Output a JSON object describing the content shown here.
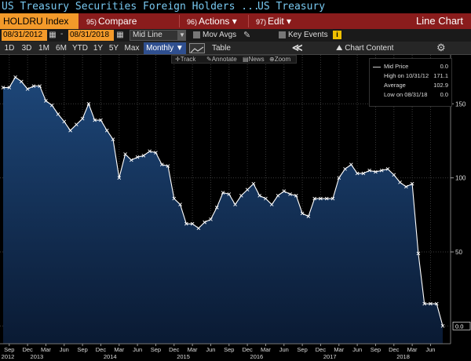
{
  "title_bar": {
    "title": "US Treasury Securities Foreign Holders ...",
    "subtitle": "US Treasury"
  },
  "toolbar1": {
    "ticker": "HOLDRU Index",
    "compare_num": "95)",
    "compare_label": "Compare",
    "actions_num": "96)",
    "actions_label": "Actions ▾",
    "edit_num": "97)",
    "edit_label": "Edit ▾",
    "chart_type": "Line Chart"
  },
  "toolbar2": {
    "start_date": "08/31/2012",
    "end_date": "08/31/2018",
    "dash": "-",
    "price_field": "Mid Line",
    "mov_avgs": "Mov Avgs",
    "key_events": "Key Events"
  },
  "toolbar3": {
    "ranges": [
      "1D",
      "3D",
      "1M",
      "6M",
      "YTD",
      "1Y",
      "5Y",
      "Max"
    ],
    "period": "Monthly ▼",
    "table_label": "Table",
    "chart_content": "Chart Content"
  },
  "subtools": {
    "track": "Track",
    "annotate": "Annotate",
    "news": "News",
    "zoom": "Zoom"
  },
  "legend": {
    "mid_price_label": "Mid Price",
    "mid_price_value": "0.0",
    "high_label": "High on 10/31/12",
    "high_value": "171.1",
    "average_label": "Average",
    "average_value": "102.9",
    "low_label": "Low on 08/31/18",
    "low_value": "0.0"
  },
  "colors": {
    "line": "#ffffff",
    "area_top": "#1d4678",
    "area_bottom": "#0a1a33",
    "accent_orange": "#f39a2a",
    "toolbar_red": "#8a1c1c"
  },
  "chart_data": {
    "type": "area",
    "series": [
      {
        "name": "Mid Price",
        "x": [
          "2012-08",
          "2012-09",
          "2012-10",
          "2012-11",
          "2012-12",
          "2013-01",
          "2013-02",
          "2013-03",
          "2013-04",
          "2013-05",
          "2013-06",
          "2013-07",
          "2013-08",
          "2013-09",
          "2013-10",
          "2013-11",
          "2013-12",
          "2014-01",
          "2014-02",
          "2014-03",
          "2014-04",
          "2014-05",
          "2014-06",
          "2014-07",
          "2014-08",
          "2014-09",
          "2014-10",
          "2014-11",
          "2014-12",
          "2015-01",
          "2015-02",
          "2015-03",
          "2015-04",
          "2015-05",
          "2015-06",
          "2015-07",
          "2015-08",
          "2015-09",
          "2015-10",
          "2015-11",
          "2015-12",
          "2016-01",
          "2016-02",
          "2016-03",
          "2016-04",
          "2016-05",
          "2016-06",
          "2016-07",
          "2016-08",
          "2016-09",
          "2016-10",
          "2016-11",
          "2016-12",
          "2017-01",
          "2017-02",
          "2017-03",
          "2017-04",
          "2017-05",
          "2017-06",
          "2017-07",
          "2017-08",
          "2017-09",
          "2017-10",
          "2017-11",
          "2017-12",
          "2018-01",
          "2018-02",
          "2018-03",
          "2018-04",
          "2018-05",
          "2018-06",
          "2018-07",
          "2018-08"
        ],
        "values": [
          161,
          161,
          168,
          165,
          160,
          162,
          162,
          152,
          149,
          143,
          138,
          132,
          136,
          140,
          150,
          139,
          139,
          132,
          126,
          100,
          116,
          112,
          114,
          115,
          118,
          117,
          109,
          108,
          86,
          82,
          69,
          69,
          66,
          70,
          72,
          80,
          90,
          89,
          82,
          88,
          92,
          96,
          88,
          86,
          82,
          88,
          91,
          89,
          88,
          76,
          74,
          86,
          86,
          86,
          86,
          100,
          106,
          109,
          103,
          103,
          105,
          104,
          105,
          106,
          102,
          97,
          94,
          96,
          49,
          15,
          15,
          15,
          0
        ]
      }
    ],
    "x_tick_labels": [
      "Sep",
      "Dec",
      "Mar",
      "Jun",
      "Sep",
      "Dec",
      "Mar",
      "Jun",
      "Sep",
      "Dec",
      "Mar",
      "Jun",
      "Sep",
      "Dec",
      "Mar",
      "Jun",
      "Sep",
      "Dec",
      "Mar",
      "Jun",
      "Sep",
      "Dec",
      "Mar",
      "Jun",
      "Sep"
    ],
    "year_labels": [
      "2012",
      "2013",
      "2014",
      "2015",
      "2016",
      "2017",
      "2018"
    ],
    "y_ticks": [
      50,
      100,
      150
    ],
    "ylim": [
      -12,
      183
    ],
    "last_value_label": "0.0",
    "grid": true
  }
}
